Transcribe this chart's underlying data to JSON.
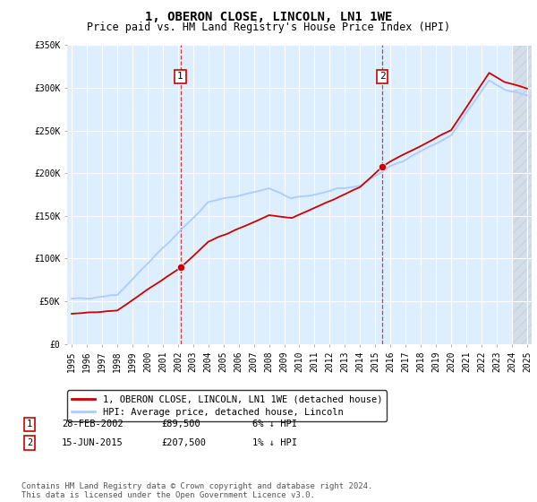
{
  "title": "1, OBERON CLOSE, LINCOLN, LN1 1WE",
  "subtitle": "Price paid vs. HM Land Registry's House Price Index (HPI)",
  "ylim": [
    0,
    350000
  ],
  "yticks": [
    0,
    50000,
    100000,
    150000,
    200000,
    250000,
    300000,
    350000
  ],
  "ytick_labels": [
    "£0",
    "£50K",
    "£100K",
    "£150K",
    "£200K",
    "£250K",
    "£300K",
    "£350K"
  ],
  "x_start_year": 1995,
  "x_end_year": 2025,
  "hpi_color": "#aaccff",
  "price_color": "#cc0000",
  "bg_color": "#ddeeff",
  "sale1_year": 2002.16,
  "sale1_price": 89500,
  "sale2_year": 2015.46,
  "sale2_price": 207500,
  "legend_label1": "1, OBERON CLOSE, LINCOLN, LN1 1WE (detached house)",
  "legend_label2": "HPI: Average price, detached house, Lincoln",
  "table_rows": [
    {
      "num": "1",
      "date": "28-FEB-2002",
      "price": "£89,500",
      "hpi": "6% ↓ HPI"
    },
    {
      "num": "2",
      "date": "15-JUN-2015",
      "price": "£207,500",
      "hpi": "1% ↓ HPI"
    }
  ],
  "footer": "Contains HM Land Registry data © Crown copyright and database right 2024.\nThis data is licensed under the Open Government Licence v3.0.",
  "title_fontsize": 10,
  "subtitle_fontsize": 8.5,
  "tick_fontsize": 7,
  "legend_fontsize": 7.5,
  "table_fontsize": 7.5,
  "footer_fontsize": 6.5
}
